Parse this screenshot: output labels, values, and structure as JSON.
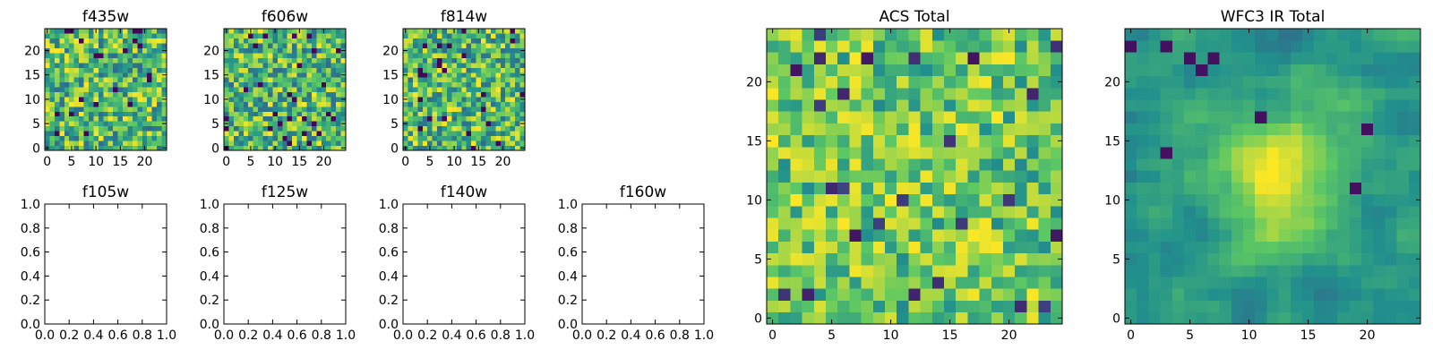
{
  "figure": {
    "colormap": "viridis",
    "colormap_stops": [
      "#440154",
      "#3b528b",
      "#21908d",
      "#5dc863",
      "#fde725"
    ]
  },
  "chart_data": [
    {
      "id": "f435w",
      "type": "heatmap",
      "title": "f435w",
      "xticks": [
        "0",
        "5",
        "10",
        "15",
        "20"
      ],
      "yticks": [
        "0",
        "5",
        "10",
        "15",
        "20"
      ],
      "xlim": [
        -0.5,
        24.5
      ],
      "ylim": [
        -0.5,
        24.5
      ],
      "grid_size": [
        25,
        25
      ],
      "texture": "uniform noise",
      "seed": 11
    },
    {
      "id": "f606w",
      "type": "heatmap",
      "title": "f606w",
      "xticks": [
        "0",
        "5",
        "10",
        "15",
        "20"
      ],
      "yticks": [
        "0",
        "5",
        "10",
        "15",
        "20"
      ],
      "xlim": [
        -0.5,
        24.5
      ],
      "ylim": [
        -0.5,
        24.5
      ],
      "grid_size": [
        25,
        25
      ],
      "texture": "uniform noise",
      "seed": 23
    },
    {
      "id": "f814w",
      "type": "heatmap",
      "title": "f814w",
      "xticks": [
        "0",
        "5",
        "10",
        "15",
        "20"
      ],
      "yticks": [
        "0",
        "5",
        "10",
        "15",
        "20"
      ],
      "xlim": [
        -0.5,
        24.5
      ],
      "ylim": [
        -0.5,
        24.5
      ],
      "grid_size": [
        25,
        25
      ],
      "texture": "uniform noise",
      "seed": 37
    },
    {
      "id": "f105w",
      "type": "line",
      "title": "f105w",
      "xticks": [
        "0.0",
        "0.2",
        "0.4",
        "0.6",
        "0.8",
        "1.0"
      ],
      "yticks": [
        "0.0",
        "0.2",
        "0.4",
        "0.6",
        "0.8",
        "1.0"
      ],
      "xlim": [
        0,
        1
      ],
      "ylim": [
        0,
        1
      ],
      "series": []
    },
    {
      "id": "f125w",
      "type": "line",
      "title": "f125w",
      "xticks": [
        "0.0",
        "0.2",
        "0.4",
        "0.6",
        "0.8",
        "1.0"
      ],
      "yticks": [
        "0.0",
        "0.2",
        "0.4",
        "0.6",
        "0.8",
        "1.0"
      ],
      "xlim": [
        0,
        1
      ],
      "ylim": [
        0,
        1
      ],
      "series": []
    },
    {
      "id": "f140w",
      "type": "line",
      "title": "f140w",
      "xticks": [
        "0.0",
        "0.2",
        "0.4",
        "0.6",
        "0.8",
        "1.0"
      ],
      "yticks": [
        "0.0",
        "0.2",
        "0.4",
        "0.6",
        "0.8",
        "1.0"
      ],
      "xlim": [
        0,
        1
      ],
      "ylim": [
        0,
        1
      ],
      "series": []
    },
    {
      "id": "f160w",
      "type": "line",
      "title": "f160w",
      "xticks": [
        "0.0",
        "0.2",
        "0.4",
        "0.6",
        "0.8",
        "1.0"
      ],
      "yticks": [
        "0.0",
        "0.2",
        "0.4",
        "0.6",
        "0.8",
        "1.0"
      ],
      "xlim": [
        0,
        1
      ],
      "ylim": [
        0,
        1
      ],
      "series": []
    },
    {
      "id": "acs-total",
      "type": "heatmap",
      "title": "ACS Total",
      "xticks": [
        "0",
        "5",
        "10",
        "15",
        "20"
      ],
      "yticks": [
        "0",
        "5",
        "10",
        "15",
        "20"
      ],
      "xlim": [
        -0.5,
        24.5
      ],
      "ylim": [
        -0.5,
        24.5
      ],
      "grid_size": [
        25,
        25
      ],
      "texture": "noise, mostly green-yellow",
      "seed": 53
    },
    {
      "id": "wfc3-ir-total",
      "type": "heatmap",
      "title": "WFC3 IR Total",
      "xticks": [
        "0",
        "5",
        "10",
        "15",
        "20"
      ],
      "yticks": [
        "0",
        "5",
        "10",
        "15",
        "20"
      ],
      "xlim": [
        -0.5,
        24.5
      ],
      "ylim": [
        -0.5,
        24.5
      ],
      "grid_size": [
        25,
        25
      ],
      "texture": "smooth field with a bright blob near the center",
      "seed": 71
    }
  ]
}
